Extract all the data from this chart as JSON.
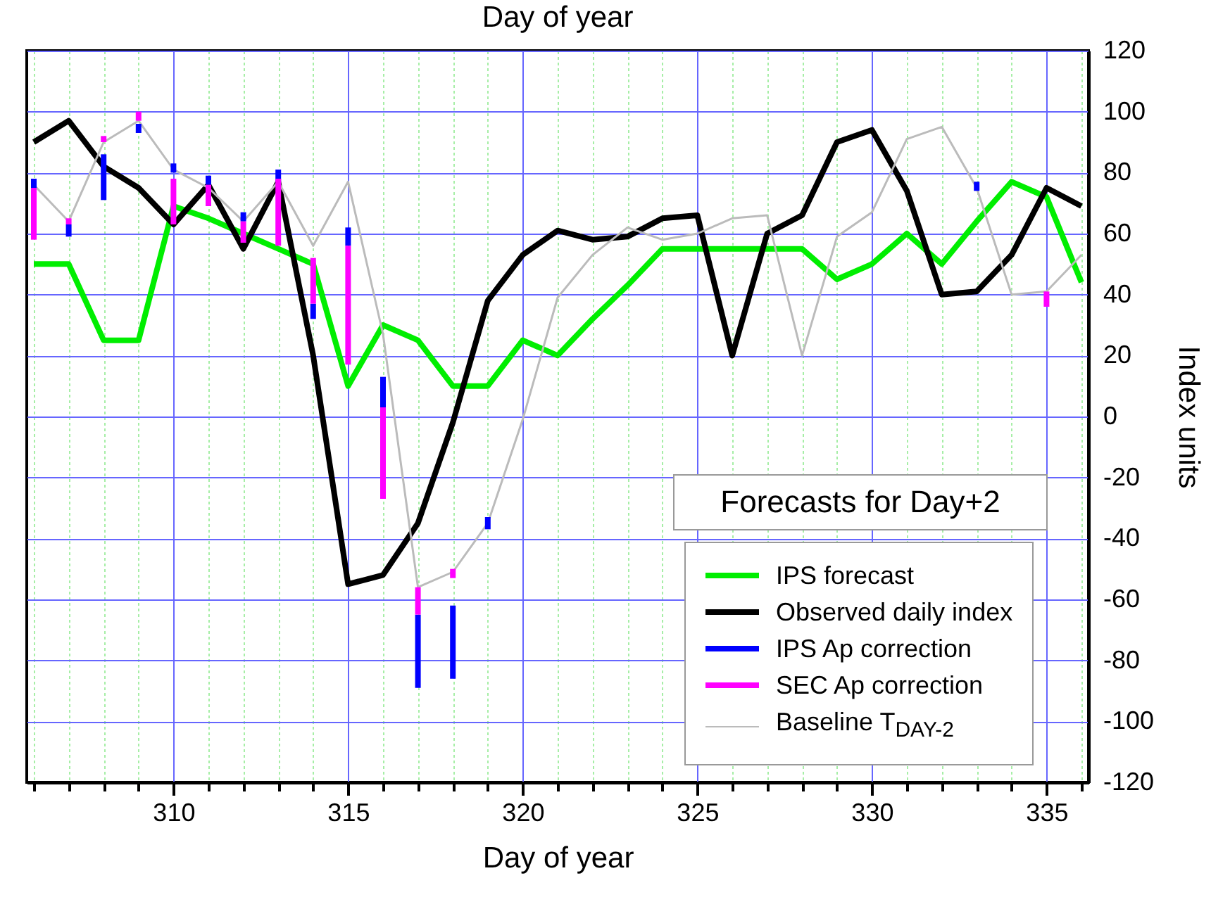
{
  "chart_data": {
    "type": "line",
    "title": "Day of year",
    "xlabel": "Day of year",
    "ylabel": "Index units",
    "annotations": [
      "Forecasts for Day+2"
    ],
    "xlim": [
      306,
      336
    ],
    "ylim": [
      -120,
      120
    ],
    "xticks": [
      {
        "value": 306,
        "label": null
      },
      {
        "value": 307,
        "label": null
      },
      {
        "value": 308,
        "label": null
      },
      {
        "value": 309,
        "label": null
      },
      310,
      {
        "value": 311,
        "label": null
      },
      {
        "value": 312,
        "label": null
      },
      {
        "value": 313,
        "label": null
      },
      {
        "value": 314,
        "label": null
      },
      315,
      {
        "value": 316,
        "label": null
      },
      {
        "value": 317,
        "label": null
      },
      {
        "value": 318,
        "label": null
      },
      {
        "value": 319,
        "label": null
      },
      320,
      {
        "value": 321,
        "label": null
      },
      {
        "value": 322,
        "label": null
      },
      {
        "value": 323,
        "label": null
      },
      {
        "value": 324,
        "label": null
      },
      325,
      {
        "value": 326,
        "label": null
      },
      {
        "value": 327,
        "label": null
      },
      {
        "value": 328,
        "label": null
      },
      {
        "value": 329,
        "label": null
      },
      330,
      {
        "value": 331,
        "label": null
      },
      {
        "value": 332,
        "label": null
      },
      {
        "value": 333,
        "label": null
      },
      {
        "value": 334,
        "label": null
      },
      335,
      {
        "value": 336,
        "label": null
      }
    ],
    "yticks": [
      -120,
      -100,
      -80,
      -60,
      -40,
      -20,
      0,
      20,
      40,
      60,
      80,
      100,
      120
    ],
    "grid": true,
    "legend": "bottom right",
    "series": [
      {
        "name": "IPS forecast",
        "color": "#00ee00",
        "x": [
          306,
          307,
          308,
          309,
          310,
          311,
          312,
          313,
          314,
          315,
          316,
          317,
          318,
          319,
          320,
          321,
          322,
          323,
          324,
          325,
          326,
          327,
          328,
          329,
          330,
          331,
          332,
          333,
          334,
          335,
          336
        ],
        "values": [
          50,
          50,
          25,
          25,
          69,
          65,
          60,
          55,
          50,
          10,
          30,
          25,
          10,
          10,
          25,
          20,
          32,
          43,
          55,
          55,
          55,
          55,
          55,
          45,
          50,
          60,
          50,
          64,
          77,
          72,
          44
        ]
      },
      {
        "name": "Observed daily index",
        "color": "#000000",
        "x": [
          306,
          307,
          308,
          309,
          310,
          311,
          312,
          313,
          314,
          315,
          316,
          317,
          318,
          319,
          320,
          321,
          322,
          323,
          324,
          325,
          326,
          327,
          328,
          329,
          330,
          331,
          332,
          333,
          334,
          335,
          336
        ],
        "values": [
          90,
          97,
          82,
          75,
          63,
          76,
          55,
          77,
          20,
          -55,
          -52,
          -35,
          -2,
          38,
          53,
          61,
          58,
          59,
          65,
          66,
          20,
          60,
          66,
          90,
          94,
          74,
          40,
          41,
          53,
          75,
          69
        ]
      },
      {
        "name": "IPS Ap correction",
        "type": "bar",
        "color": "#0000ff",
        "x": [
          306,
          307,
          308,
          309,
          310,
          311,
          312,
          313,
          314,
          315,
          316,
          317,
          318,
          319,
          333
        ],
        "base": [
          75,
          59,
          71,
          93,
          80,
          76,
          64,
          77,
          32,
          56,
          3,
          -89,
          -86,
          -37,
          74
        ],
        "values": [
          3,
          4,
          15,
          3,
          3,
          3,
          3,
          4,
          5,
          6,
          10,
          24,
          24,
          4,
          3
        ]
      },
      {
        "name": "SEC Ap correction",
        "type": "bar",
        "color": "#ff00ff",
        "x": [
          306,
          307,
          308,
          309,
          310,
          311,
          312,
          313,
          314,
          315,
          316,
          317,
          318,
          335
        ],
        "base": [
          58,
          63,
          90,
          97,
          63,
          69,
          57,
          56,
          37,
          17,
          -27,
          -65,
          -53,
          36
        ],
        "values": [
          17,
          2,
          2,
          3,
          15,
          7,
          7,
          22,
          15,
          39,
          30,
          9,
          3,
          5
        ]
      },
      {
        "name": "Baseline T$_{DAY-2}$",
        "color": "#bbbbbb",
        "x": [
          306,
          307,
          308,
          309,
          310,
          311,
          312,
          313,
          314,
          315,
          316,
          317,
          318,
          319,
          320,
          321,
          322,
          323,
          324,
          325,
          326,
          327,
          328,
          329,
          330,
          331,
          332,
          333,
          334,
          335,
          336
        ],
        "values": [
          76,
          64,
          90,
          97,
          81,
          75,
          64,
          77,
          56,
          77,
          27,
          -56,
          -51,
          -35,
          -1,
          39,
          53,
          62,
          58,
          60,
          65,
          66,
          20,
          59,
          67,
          91,
          95,
          75,
          40,
          41,
          53
        ]
      }
    ]
  }
}
